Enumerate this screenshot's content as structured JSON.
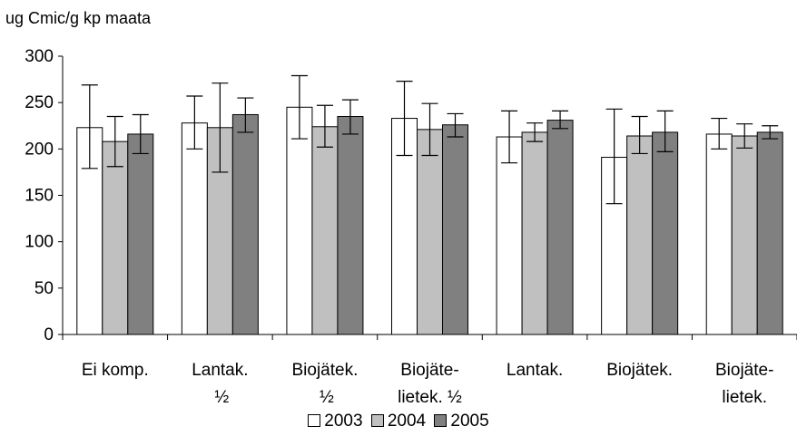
{
  "chart_data": {
    "type": "bar",
    "ylabel": "ug Cmic/g kp maata",
    "ylim": [
      0,
      300
    ],
    "yticks": [
      "0",
      "50",
      "100",
      "150",
      "200",
      "250",
      "300"
    ],
    "categories": [
      [
        "Ei komp."
      ],
      [
        "Lantak.",
        "½"
      ],
      [
        "Biojätek.",
        "½"
      ],
      [
        "Biojäte-",
        "lietek. ½"
      ],
      [
        "Lantak."
      ],
      [
        "Biojätek."
      ],
      [
        "Biojäte-",
        "lietek."
      ]
    ],
    "series": [
      {
        "name": "2003",
        "color": "#ffffff",
        "values": [
          223,
          228,
          245,
          233,
          213,
          191,
          216
        ],
        "err_low": [
          179,
          200,
          211,
          193,
          185,
          141,
          200
        ],
        "err_high": [
          269,
          257,
          279,
          273,
          241,
          243,
          233
        ]
      },
      {
        "name": "2004",
        "color": "#c0c0c0",
        "values": [
          208,
          223,
          224,
          221,
          218,
          214,
          214
        ],
        "err_low": [
          181,
          175,
          202,
          193,
          208,
          195,
          201
        ],
        "err_high": [
          235,
          271,
          247,
          249,
          228,
          235,
          227
        ]
      },
      {
        "name": "2005",
        "color": "#808080",
        "values": [
          216,
          237,
          235,
          226,
          231,
          218,
          218
        ],
        "err_low": [
          195,
          218,
          216,
          213,
          222,
          197,
          211
        ],
        "err_high": [
          237,
          255,
          253,
          238,
          241,
          241,
          225
        ]
      }
    ],
    "legend_position": "bottom",
    "grid": false
  }
}
